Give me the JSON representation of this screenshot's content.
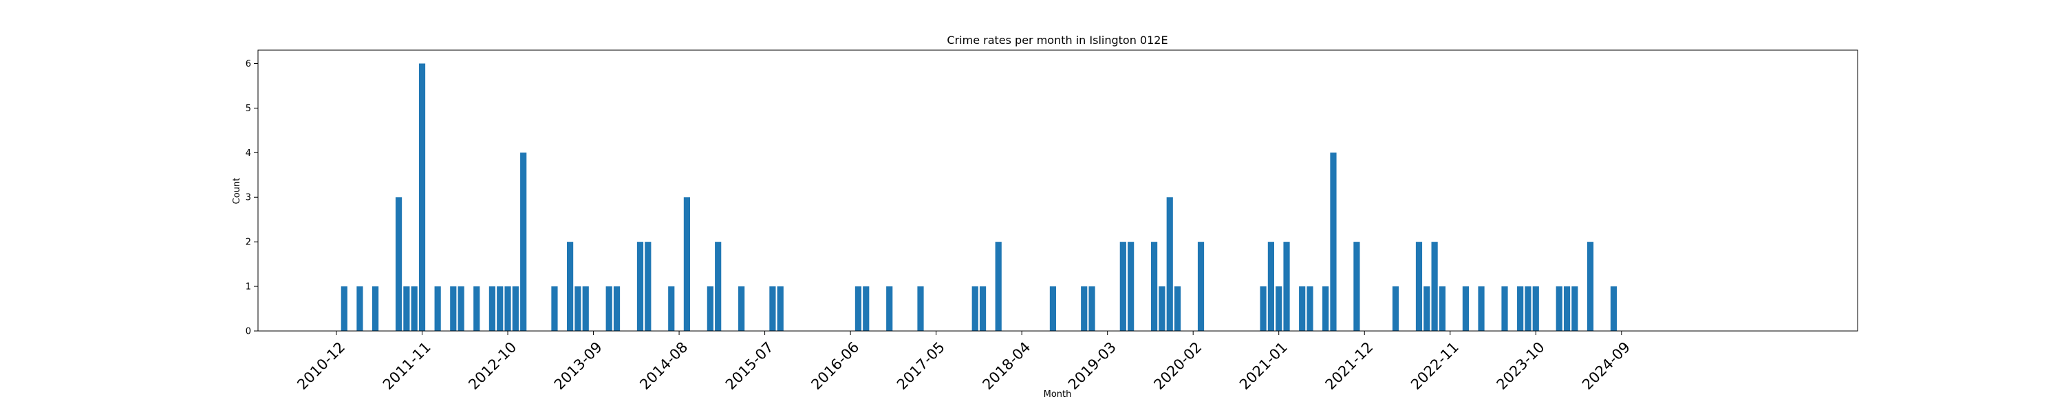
{
  "chart_data": {
    "type": "bar",
    "title": "Crime rates per month in Islington 012E",
    "xlabel": "Month",
    "ylabel": "Count",
    "ylim": [
      0,
      6.3
    ],
    "yticks": [
      "0",
      "1",
      "2",
      "3",
      "4",
      "5",
      "6"
    ],
    "xticks": [
      "2010-12",
      "2011-11",
      "2012-10",
      "2013-09",
      "2014-08",
      "2015-07",
      "2016-06",
      "2017-05",
      "2018-04",
      "2019-03",
      "2020-02",
      "2021-01",
      "2021-12",
      "2022-11",
      "2023-10",
      "2024-09"
    ],
    "bar_color": "#1f77b4",
    "grid": false,
    "x": [
      "2011-01",
      "2011-03",
      "2011-05",
      "2011-08",
      "2011-09",
      "2011-10",
      "2011-11",
      "2012-01",
      "2012-03",
      "2012-04",
      "2012-06",
      "2012-08",
      "2012-09",
      "2012-10",
      "2012-11",
      "2012-12",
      "2013-04",
      "2013-06",
      "2013-07",
      "2013-08",
      "2013-11",
      "2013-12",
      "2014-03",
      "2014-04",
      "2014-07",
      "2014-09",
      "2014-12",
      "2015-01",
      "2015-04",
      "2015-08",
      "2015-09",
      "2016-07",
      "2016-08",
      "2016-11",
      "2017-03",
      "2017-10",
      "2017-11",
      "2018-01",
      "2018-08",
      "2018-12",
      "2019-01",
      "2019-05",
      "2019-06",
      "2019-09",
      "2019-10",
      "2019-11",
      "2019-12",
      "2020-03",
      "2020-11",
      "2020-12",
      "2021-01",
      "2021-02",
      "2021-04",
      "2021-05",
      "2021-07",
      "2021-08",
      "2021-11",
      "2022-04",
      "2022-07",
      "2022-08",
      "2022-09",
      "2022-10",
      "2023-01",
      "2023-03",
      "2023-06",
      "2023-08",
      "2023-09",
      "2023-10",
      "2024-01",
      "2024-02",
      "2024-03",
      "2024-05",
      "2024-08"
    ],
    "values": [
      1,
      1,
      1,
      3,
      1,
      1,
      6,
      1,
      1,
      1,
      1,
      1,
      1,
      1,
      1,
      4,
      1,
      2,
      1,
      1,
      1,
      1,
      2,
      2,
      1,
      3,
      1,
      2,
      1,
      1,
      1,
      1,
      1,
      1,
      1,
      1,
      1,
      2,
      1,
      1,
      1,
      2,
      2,
      2,
      1,
      3,
      1,
      2,
      1,
      2,
      1,
      2,
      1,
      1,
      1,
      4,
      2,
      1,
      2,
      1,
      2,
      1,
      1,
      1,
      1,
      1,
      1,
      1,
      1,
      1,
      1,
      2,
      1
    ]
  }
}
